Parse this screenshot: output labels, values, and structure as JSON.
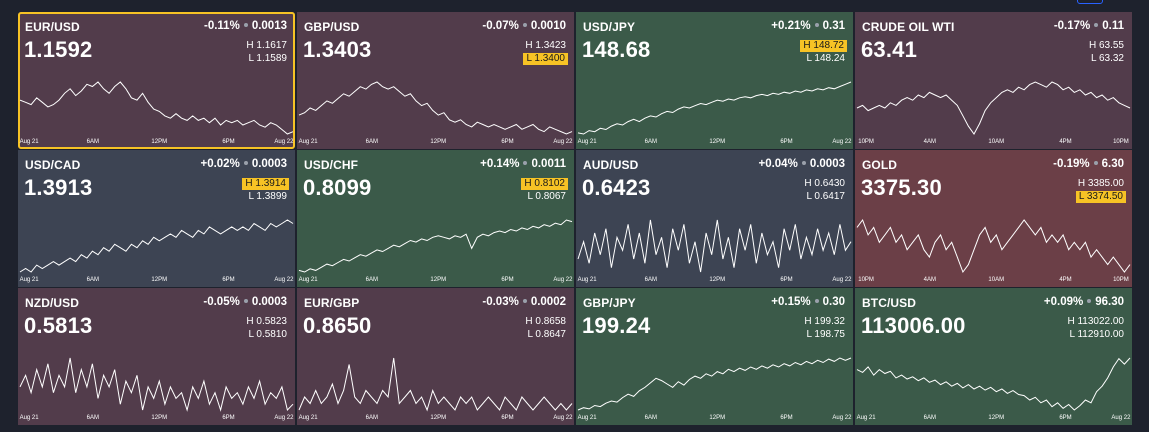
{
  "colors": {
    "red": "#5a3d4a",
    "green": "#3b5a4a",
    "gray": "#3f4654",
    "highlight": "#f7c325",
    "selected_border": "#f7c325"
  },
  "tiles": [
    {
      "symbol": "EUR/USD",
      "price": "1.1592",
      "change": "-0.11%",
      "change_abs": "0.0013",
      "high": "H 1.1617",
      "low": "L 1.1589",
      "hi_mark": "none",
      "tone": "red",
      "selected": true,
      "ticks": [
        "Aug 21",
        "6AM",
        "12PM",
        "6PM",
        "Aug 22"
      ],
      "series": [
        1.1605,
        1.1604,
        1.1603,
        1.1606,
        1.1604,
        1.1602,
        1.1603,
        1.1605,
        1.1608,
        1.161,
        1.1607,
        1.1609,
        1.1612,
        1.1611,
        1.1613,
        1.161,
        1.1608,
        1.1611,
        1.1613,
        1.161,
        1.1606,
        1.1605,
        1.1608,
        1.1604,
        1.1601,
        1.16,
        1.1598,
        1.1597,
        1.1599,
        1.1597,
        1.1596,
        1.1598,
        1.1596,
        1.1597,
        1.1595,
        1.1597,
        1.1594,
        1.1596,
        1.1595,
        1.1596,
        1.1594,
        1.1595,
        1.1596,
        1.1594,
        1.1593,
        1.1595,
        1.1594,
        1.1592,
        1.159,
        1.1591
      ]
    },
    {
      "symbol": "GBP/USD",
      "price": "1.3403",
      "change": "-0.07%",
      "change_abs": "0.0010",
      "high": "H 1.3423",
      "low": "L 1.3400",
      "hi_mark": "low",
      "tone": "red",
      "selected": false,
      "ticks": [
        "Aug 21",
        "6AM",
        "12PM",
        "6PM",
        "Aug 22"
      ],
      "series": [
        1.3408,
        1.3409,
        1.3411,
        1.341,
        1.3412,
        1.3414,
        1.3413,
        1.3415,
        1.3417,
        1.3416,
        1.3418,
        1.342,
        1.3419,
        1.3421,
        1.3422,
        1.342,
        1.3419,
        1.342,
        1.3418,
        1.3416,
        1.3417,
        1.3414,
        1.3412,
        1.3413,
        1.341,
        1.3408,
        1.3409,
        1.3406,
        1.3405,
        1.3406,
        1.3404,
        1.3403,
        1.3405,
        1.3404,
        1.3403,
        1.3404,
        1.3403,
        1.3402,
        1.3403,
        1.3404,
        1.3402,
        1.3403,
        1.3404,
        1.3402,
        1.3401,
        1.3403,
        1.3402,
        1.3401,
        1.34,
        1.3401
      ]
    },
    {
      "symbol": "USD/JPY",
      "price": "148.68",
      "change": "+0.21%",
      "change_abs": "0.31",
      "high": "H 148.72",
      "low": "L 148.24",
      "hi_mark": "high",
      "tone": "green",
      "selected": false,
      "ticks": [
        "Aug 21",
        "6AM",
        "12PM",
        "6PM",
        "Aug 22"
      ],
      "series": [
        148.26,
        148.25,
        148.28,
        148.27,
        148.3,
        148.29,
        148.32,
        148.34,
        148.33,
        148.36,
        148.38,
        148.36,
        148.39,
        148.41,
        148.4,
        148.43,
        148.45,
        148.44,
        148.47,
        148.49,
        148.48,
        148.5,
        148.52,
        148.51,
        148.53,
        148.55,
        148.54,
        148.56,
        148.55,
        148.57,
        148.58,
        148.57,
        148.59,
        148.6,
        148.59,
        148.61,
        148.6,
        148.62,
        148.61,
        148.63,
        148.62,
        148.64,
        148.63,
        148.65,
        148.64,
        148.66,
        148.65,
        148.67,
        148.69,
        148.71
      ]
    },
    {
      "symbol": "CRUDE OIL WTI",
      "price": "63.41",
      "change": "-0.17%",
      "change_abs": "0.11",
      "high": "H 63.55",
      "low": "L 63.32",
      "hi_mark": "none",
      "tone": "red",
      "selected": false,
      "ticks": [
        "10PM",
        "4AM",
        "10AM",
        "4PM",
        "10PM"
      ],
      "series": [
        63.43,
        63.44,
        63.42,
        63.43,
        63.44,
        63.43,
        63.45,
        63.44,
        63.46,
        63.47,
        63.46,
        63.48,
        63.47,
        63.49,
        63.48,
        63.47,
        63.48,
        63.46,
        63.44,
        63.4,
        63.36,
        63.33,
        63.37,
        63.42,
        63.45,
        63.47,
        63.49,
        63.5,
        63.49,
        63.51,
        63.5,
        63.52,
        63.53,
        63.52,
        63.51,
        63.53,
        63.52,
        63.5,
        63.51,
        63.49,
        63.5,
        63.48,
        63.49,
        63.47,
        63.48,
        63.46,
        63.47,
        63.45,
        63.44,
        63.43
      ]
    },
    {
      "symbol": "USD/CAD",
      "price": "1.3913",
      "change": "+0.02%",
      "change_abs": "0.0003",
      "high": "H 1.3914",
      "low": "L 1.3899",
      "hi_mark": "high",
      "tone": "gray",
      "selected": false,
      "ticks": [
        "Aug 21",
        "6AM",
        "12PM",
        "6PM",
        "Aug 22"
      ],
      "series": [
        1.3899,
        1.39,
        1.3899,
        1.3901,
        1.39,
        1.3901,
        1.3902,
        1.3901,
        1.3902,
        1.3903,
        1.3902,
        1.3904,
        1.3903,
        1.3905,
        1.3904,
        1.3906,
        1.3905,
        1.3907,
        1.3906,
        1.3905,
        1.3907,
        1.3906,
        1.3908,
        1.3907,
        1.3909,
        1.3908,
        1.3909,
        1.391,
        1.3909,
        1.3911,
        1.391,
        1.3909,
        1.3911,
        1.391,
        1.3912,
        1.3911,
        1.391,
        1.3911,
        1.3912,
        1.3911,
        1.3912,
        1.3911,
        1.3913,
        1.3912,
        1.3911,
        1.3913,
        1.3912,
        1.3913,
        1.3914,
        1.3913
      ]
    },
    {
      "symbol": "USD/CHF",
      "price": "0.8099",
      "change": "+0.14%",
      "change_abs": "0.0011",
      "high": "H 0.8102",
      "low": "L 0.8067",
      "hi_mark": "high",
      "tone": "green",
      "selected": false,
      "ticks": [
        "Aug 21",
        "6AM",
        "12PM",
        "6PM",
        "Aug 22"
      ],
      "series": [
        0.8068,
        0.8067,
        0.8069,
        0.8068,
        0.807,
        0.8072,
        0.8071,
        0.8073,
        0.8075,
        0.8074,
        0.8076,
        0.8078,
        0.8077,
        0.8079,
        0.8081,
        0.808,
        0.8082,
        0.8084,
        0.8083,
        0.8085,
        0.8087,
        0.8086,
        0.8088,
        0.8087,
        0.8089,
        0.809,
        0.8089,
        0.8088,
        0.809,
        0.8089,
        0.8091,
        0.8082,
        0.8089,
        0.8091,
        0.809,
        0.8092,
        0.8093,
        0.8092,
        0.8094,
        0.8093,
        0.8095,
        0.8094,
        0.8096,
        0.8095,
        0.8097,
        0.8096,
        0.8098,
        0.8097,
        0.81,
        0.8099
      ]
    },
    {
      "symbol": "AUD/USD",
      "price": "0.6423",
      "change": "+0.04%",
      "change_abs": "0.0003",
      "high": "H 0.6430",
      "low": "L 0.6417",
      "hi_mark": "none",
      "tone": "gray",
      "selected": false,
      "ticks": [
        "Aug 21",
        "6AM",
        "12PM",
        "6PM",
        "Aug 22"
      ],
      "series": [
        0.642,
        0.6424,
        0.6419,
        0.6426,
        0.6421,
        0.6427,
        0.6418,
        0.6425,
        0.6422,
        0.6428,
        0.642,
        0.6426,
        0.6419,
        0.6429,
        0.6421,
        0.6425,
        0.6418,
        0.6427,
        0.6422,
        0.6428,
        0.6419,
        0.6424,
        0.6417,
        0.6426,
        0.6421,
        0.6429,
        0.642,
        0.6425,
        0.6418,
        0.6427,
        0.6422,
        0.6428,
        0.6419,
        0.6426,
        0.6421,
        0.6424,
        0.6418,
        0.6427,
        0.6422,
        0.6428,
        0.642,
        0.6425,
        0.6421,
        0.6427,
        0.6422,
        0.6426,
        0.6421,
        0.6428,
        0.6422,
        0.6424
      ]
    },
    {
      "symbol": "GOLD",
      "price": "3375.30",
      "change": "-0.19%",
      "change_abs": "6.30",
      "high": "H 3385.00",
      "low": "L 3374.50",
      "hi_mark": "low",
      "tone": "rose",
      "selected": false,
      "ticks": [
        "10PM",
        "4AM",
        "10AM",
        "4PM",
        "10PM"
      ],
      "series": [
        3381,
        3382,
        3380,
        3381,
        3379,
        3380,
        3381,
        3379,
        3380,
        3378,
        3379,
        3380,
        3378,
        3377,
        3379,
        3380,
        3378,
        3379,
        3377,
        3375,
        3376,
        3378,
        3380,
        3381,
        3379,
        3380,
        3378,
        3379,
        3380,
        3381,
        3382,
        3381,
        3380,
        3381,
        3379,
        3380,
        3379,
        3380,
        3378,
        3379,
        3378,
        3379,
        3377,
        3378,
        3377,
        3376,
        3377,
        3376,
        3375,
        3376
      ]
    },
    {
      "symbol": "NZD/USD",
      "price": "0.5813",
      "change": "-0.05%",
      "change_abs": "0.0003",
      "high": "H 0.5823",
      "low": "L 0.5810",
      "hi_mark": "none",
      "tone": "red",
      "selected": false,
      "ticks": [
        "Aug 21",
        "6AM",
        "12PM",
        "6PM",
        "Aug 22"
      ],
      "series": [
        0.5816,
        0.5818,
        0.5815,
        0.5819,
        0.5816,
        0.582,
        0.5815,
        0.5818,
        0.5816,
        0.5821,
        0.5815,
        0.5819,
        0.5816,
        0.582,
        0.5814,
        0.5818,
        0.5816,
        0.5819,
        0.5813,
        0.5817,
        0.5815,
        0.5818,
        0.5812,
        0.5816,
        0.5814,
        0.5817,
        0.5813,
        0.5816,
        0.5814,
        0.5815,
        0.5812,
        0.5816,
        0.5814,
        0.5817,
        0.5813,
        0.5815,
        0.5812,
        0.5816,
        0.5814,
        0.5815,
        0.5813,
        0.5816,
        0.5814,
        0.5817,
        0.5813,
        0.5815,
        0.5814,
        0.5816,
        0.5812,
        0.5813
      ]
    },
    {
      "symbol": "EUR/GBP",
      "price": "0.8650",
      "change": "-0.03%",
      "change_abs": "0.0002",
      "high": "H 0.8658",
      "low": "L 0.8647",
      "hi_mark": "none",
      "tone": "red",
      "selected": false,
      "ticks": [
        "Aug 21",
        "6AM",
        "12PM",
        "6PM",
        "Aug 22"
      ],
      "series": [
        0.8649,
        0.8651,
        0.865,
        0.8652,
        0.865,
        0.8651,
        0.8653,
        0.865,
        0.8652,
        0.8656,
        0.8651,
        0.865,
        0.8652,
        0.8651,
        0.865,
        0.8652,
        0.8651,
        0.8657,
        0.865,
        0.8651,
        0.8652,
        0.865,
        0.8651,
        0.8649,
        0.8652,
        0.865,
        0.8651,
        0.865,
        0.8649,
        0.8651,
        0.865,
        0.8651,
        0.8649,
        0.865,
        0.8651,
        0.865,
        0.8649,
        0.8651,
        0.865,
        0.8649,
        0.8651,
        0.865,
        0.8649,
        0.865,
        0.8651,
        0.865,
        0.8649,
        0.865,
        0.8649,
        0.865
      ]
    },
    {
      "symbol": "GBP/JPY",
      "price": "199.24",
      "change": "+0.15%",
      "change_abs": "0.30",
      "high": "H 199.32",
      "low": "L 198.75",
      "hi_mark": "none",
      "tone": "green",
      "selected": false,
      "ticks": [
        "Aug 21",
        "6AM",
        "12PM",
        "6PM",
        "Aug 22"
      ],
      "series": [
        198.78,
        198.8,
        198.79,
        198.82,
        198.81,
        198.84,
        198.86,
        198.85,
        198.89,
        198.92,
        198.9,
        198.95,
        198.98,
        199.02,
        199.06,
        199.04,
        199.01,
        198.98,
        199.03,
        199.0,
        199.05,
        199.08,
        199.06,
        199.1,
        199.08,
        199.12,
        199.1,
        199.14,
        199.12,
        199.15,
        199.13,
        199.16,
        199.14,
        199.17,
        199.15,
        199.18,
        199.16,
        199.19,
        199.17,
        199.2,
        199.18,
        199.21,
        199.19,
        199.22,
        199.2,
        199.23,
        199.21,
        199.24,
        199.22,
        199.24
      ]
    },
    {
      "symbol": "BTC/USD",
      "price": "113006.00",
      "change": "+0.09%",
      "change_abs": "96.30",
      "high": "H 113022.00",
      "low": "L 112910.00",
      "hi_mark": "none",
      "tone": "green",
      "selected": false,
      "ticks": [
        "Aug 21",
        "6AM",
        "12PM",
        "6PM",
        "Aug 22"
      ],
      "series": [
        112985,
        112980,
        112990,
        112975,
        112985,
        112978,
        112982,
        112970,
        112975,
        112968,
        112972,
        112965,
        112970,
        112962,
        112966,
        112958,
        112963,
        112955,
        112960,
        112952,
        112958,
        112950,
        112955,
        112948,
        112953,
        112945,
        112950,
        112942,
        112947,
        112940,
        112938,
        112930,
        112935,
        112925,
        112930,
        112918,
        112925,
        112915,
        112922,
        112912,
        112920,
        112930,
        112925,
        112945,
        112955,
        112970,
        112990,
        113005,
        112995,
        113006
      ]
    }
  ]
}
